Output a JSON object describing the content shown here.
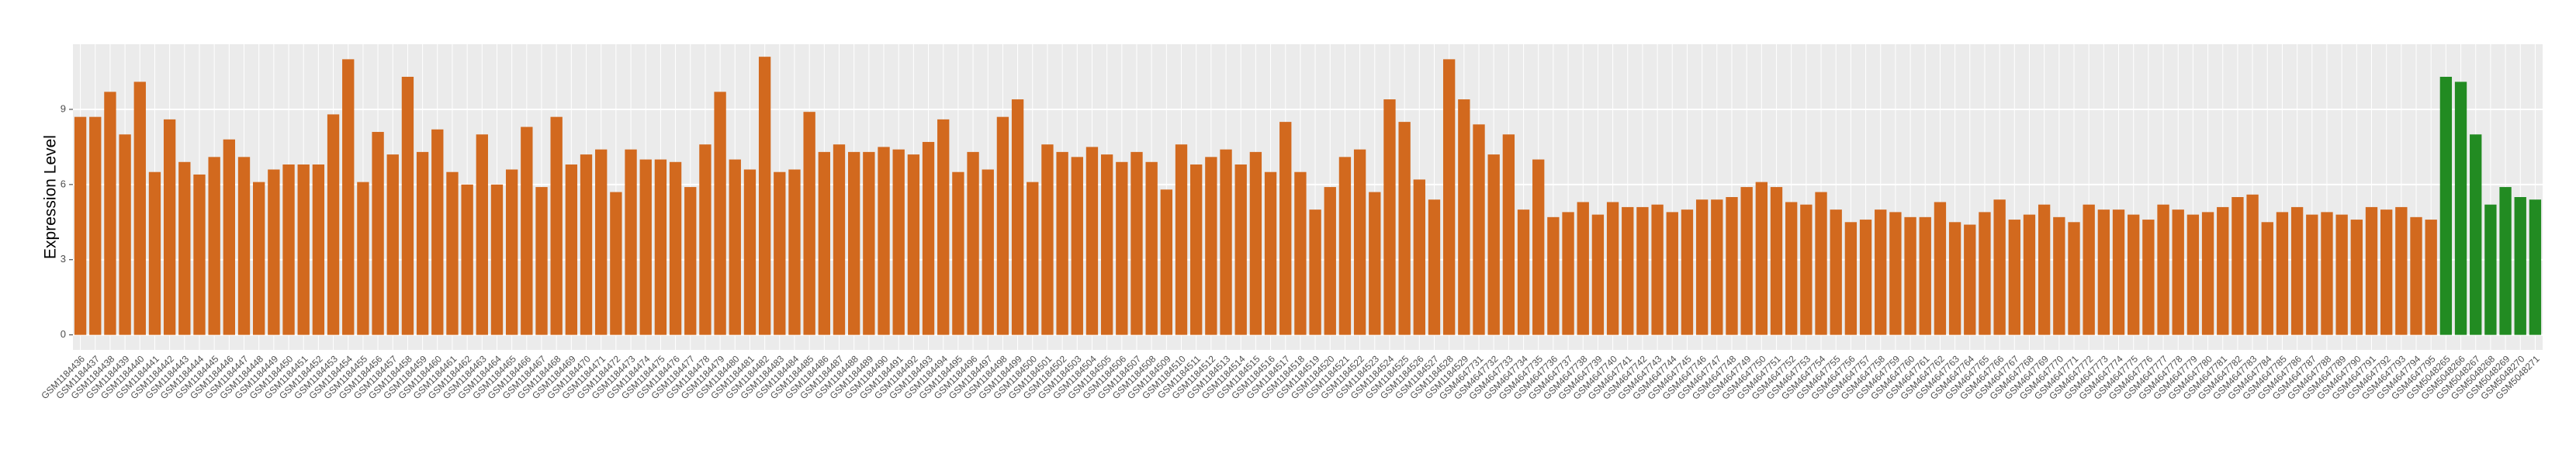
{
  "chart_data": {
    "type": "bar",
    "y_label": "Expression Level",
    "categories": [
      "GSM1184436",
      "GSM1184437",
      "GSM1184438",
      "GSM1184439",
      "GSM1184440",
      "GSM1184441",
      "GSM1184442",
      "GSM1184443",
      "GSM1184444",
      "GSM1184445",
      "GSM1184446",
      "GSM1184447",
      "GSM1184448",
      "GSM1184449",
      "GSM1184450",
      "GSM1184451",
      "GSM1184452",
      "GSM1184453",
      "GSM1184454",
      "GSM1184455",
      "GSM1184456",
      "GSM1184457",
      "GSM1184458",
      "GSM1184459",
      "GSM1184460",
      "GSM1184461",
      "GSM1184462",
      "GSM1184463",
      "GSM1184464",
      "GSM1184465",
      "GSM1184466",
      "GSM1184467",
      "GSM1184468",
      "GSM1184469",
      "GSM1184470",
      "GSM1184471",
      "GSM1184472",
      "GSM1184473",
      "GSM1184474",
      "GSM1184475",
      "GSM1184476",
      "GSM1184477",
      "GSM1184478",
      "GSM1184479",
      "GSM1184480",
      "GSM1184481",
      "GSM1184482",
      "GSM1184483",
      "GSM1184484",
      "GSM1184485",
      "GSM1184486",
      "GSM1184487",
      "GSM1184488",
      "GSM1184489",
      "GSM1184490",
      "GSM1184491",
      "GSM1184492",
      "GSM1184493",
      "GSM1184494",
      "GSM1184495",
      "GSM1184496",
      "GSM1184497",
      "GSM1184498",
      "GSM1184499",
      "GSM1184500",
      "GSM1184501",
      "GSM1184502",
      "GSM1184503",
      "GSM1184504",
      "GSM1184505",
      "GSM1184506",
      "GSM1184507",
      "GSM1184508",
      "GSM1184509",
      "GSM1184510",
      "GSM1184511",
      "GSM1184512",
      "GSM1184513",
      "GSM1184514",
      "GSM1184515",
      "GSM1184516",
      "GSM1184517",
      "GSM1184518",
      "GSM1184519",
      "GSM1184520",
      "GSM1184521",
      "GSM1184522",
      "GSM1184523",
      "GSM1184524",
      "GSM1184525",
      "GSM1184526",
      "GSM1184527",
      "GSM1184528",
      "GSM1184529",
      "GSM4647731",
      "GSM4647732",
      "GSM4647733",
      "GSM4647734",
      "GSM4647735",
      "GSM4647736",
      "GSM4647737",
      "GSM4647738",
      "GSM4647739",
      "GSM4647740",
      "GSM4647741",
      "GSM4647742",
      "GSM4647743",
      "GSM4647744",
      "GSM4647745",
      "GSM4647746",
      "GSM4647747",
      "GSM4647748",
      "GSM4647749",
      "GSM4647750",
      "GSM4647751",
      "GSM4647752",
      "GSM4647753",
      "GSM4647754",
      "GSM4647755",
      "GSM4647756",
      "GSM4647757",
      "GSM4647758",
      "GSM4647759",
      "GSM4647760",
      "GSM4647761",
      "GSM4647762",
      "GSM4647763",
      "GSM4647764",
      "GSM4647765",
      "GSM4647766",
      "GSM4647767",
      "GSM4647768",
      "GSM4647769",
      "GSM4647770",
      "GSM4647771",
      "GSM4647772",
      "GSM4647773",
      "GSM4647774",
      "GSM4647775",
      "GSM4647776",
      "GSM4647777",
      "GSM4647778",
      "GSM4647779",
      "GSM4647780",
      "GSM4647781",
      "GSM4647782",
      "GSM4647783",
      "GSM4647784",
      "GSM4647785",
      "GSM4647786",
      "GSM4647787",
      "GSM4647788",
      "GSM4647789",
      "GSM4647790",
      "GSM4647791",
      "GSM4647792",
      "GSM4647793",
      "GSM4647794",
      "GSM4647795",
      "GSM5048265",
      "GSM5048266",
      "GSM5048267",
      "GSM5048268",
      "GSM5048269",
      "GSM5048270",
      "GSM5048271"
    ],
    "values": [
      8.7,
      8.7,
      9.7,
      8.0,
      10.1,
      6.5,
      8.6,
      6.9,
      6.4,
      7.1,
      7.8,
      7.1,
      6.1,
      6.6,
      6.8,
      6.8,
      6.8,
      8.8,
      11.0,
      6.1,
      8.1,
      7.2,
      10.3,
      7.3,
      8.2,
      6.5,
      6.0,
      8.0,
      6.0,
      6.6,
      8.3,
      5.9,
      8.7,
      6.8,
      7.2,
      7.4,
      5.7,
      7.4,
      7.0,
      7.0,
      6.9,
      5.9,
      7.6,
      9.7,
      7.0,
      6.6,
      11.1,
      6.5,
      6.6,
      8.9,
      7.3,
      7.6,
      7.3,
      7.3,
      7.5,
      7.4,
      7.2,
      7.7,
      8.6,
      6.5,
      7.3,
      6.6,
      8.7,
      9.4,
      6.1,
      7.6,
      7.3,
      7.1,
      7.5,
      7.2,
      6.9,
      7.3,
      6.9,
      5.8,
      7.6,
      6.8,
      7.1,
      7.4,
      6.8,
      7.3,
      6.5,
      8.5,
      6.5,
      5.0,
      5.9,
      7.1,
      7.4,
      5.7,
      9.4,
      8.5,
      6.2,
      5.4,
      11.0,
      9.4,
      8.4,
      7.2,
      8.0,
      5.0,
      7.0,
      4.7,
      4.9,
      5.3,
      4.8,
      5.3,
      5.1,
      5.1,
      5.2,
      4.9,
      5.0,
      5.4,
      5.4,
      5.5,
      5.9,
      6.1,
      5.9,
      5.3,
      5.2,
      5.7,
      5.0,
      4.5,
      4.6,
      5.0,
      4.9,
      4.7,
      4.7,
      5.3,
      4.5,
      4.4,
      4.9,
      5.4,
      4.6,
      4.8,
      5.2,
      4.7,
      4.5,
      5.2,
      5.0,
      5.0,
      4.8,
      4.6,
      5.2,
      5.0,
      4.8,
      4.9,
      5.1,
      5.5,
      5.6,
      4.5,
      4.9,
      5.1,
      4.8,
      4.9,
      4.8,
      4.6,
      5.1,
      5.0,
      5.1,
      4.7,
      4.6,
      10.3,
      10.1,
      8.0,
      5.2,
      5.9,
      5.5,
      5.4
    ],
    "colors": [
      "#d2691e",
      "#d2691e",
      "#d2691e",
      "#d2691e",
      "#d2691e",
      "#d2691e",
      "#d2691e",
      "#d2691e",
      "#d2691e",
      "#d2691e",
      "#d2691e",
      "#d2691e",
      "#d2691e",
      "#d2691e",
      "#d2691e",
      "#d2691e",
      "#d2691e",
      "#d2691e",
      "#d2691e",
      "#d2691e",
      "#d2691e",
      "#d2691e",
      "#d2691e",
      "#d2691e",
      "#d2691e",
      "#d2691e",
      "#d2691e",
      "#d2691e",
      "#d2691e",
      "#d2691e",
      "#d2691e",
      "#d2691e",
      "#d2691e",
      "#d2691e",
      "#d2691e",
      "#d2691e",
      "#d2691e",
      "#d2691e",
      "#d2691e",
      "#d2691e",
      "#d2691e",
      "#d2691e",
      "#d2691e",
      "#d2691e",
      "#d2691e",
      "#d2691e",
      "#d2691e",
      "#d2691e",
      "#d2691e",
      "#d2691e",
      "#d2691e",
      "#d2691e",
      "#d2691e",
      "#d2691e",
      "#d2691e",
      "#d2691e",
      "#d2691e",
      "#d2691e",
      "#d2691e",
      "#d2691e",
      "#d2691e",
      "#d2691e",
      "#d2691e",
      "#d2691e",
      "#d2691e",
      "#d2691e",
      "#d2691e",
      "#d2691e",
      "#d2691e",
      "#d2691e",
      "#d2691e",
      "#d2691e",
      "#d2691e",
      "#d2691e",
      "#d2691e",
      "#d2691e",
      "#d2691e",
      "#d2691e",
      "#d2691e",
      "#d2691e",
      "#d2691e",
      "#d2691e",
      "#d2691e",
      "#d2691e",
      "#d2691e",
      "#d2691e",
      "#d2691e",
      "#d2691e",
      "#d2691e",
      "#d2691e",
      "#d2691e",
      "#d2691e",
      "#d2691e",
      "#d2691e",
      "#d2691e",
      "#d2691e",
      "#d2691e",
      "#d2691e",
      "#d2691e",
      "#d2691e",
      "#d2691e",
      "#d2691e",
      "#d2691e",
      "#d2691e",
      "#d2691e",
      "#d2691e",
      "#d2691e",
      "#d2691e",
      "#d2691e",
      "#d2691e",
      "#d2691e",
      "#d2691e",
      "#d2691e",
      "#d2691e",
      "#d2691e",
      "#d2691e",
      "#d2691e",
      "#d2691e",
      "#d2691e",
      "#d2691e",
      "#d2691e",
      "#d2691e",
      "#d2691e",
      "#d2691e",
      "#d2691e",
      "#d2691e",
      "#d2691e",
      "#d2691e",
      "#d2691e",
      "#d2691e",
      "#d2691e",
      "#d2691e",
      "#d2691e",
      "#d2691e",
      "#d2691e",
      "#d2691e",
      "#d2691e",
      "#d2691e",
      "#d2691e",
      "#d2691e",
      "#d2691e",
      "#d2691e",
      "#d2691e",
      "#d2691e",
      "#d2691e",
      "#d2691e",
      "#d2691e",
      "#d2691e",
      "#d2691e",
      "#d2691e",
      "#d2691e",
      "#d2691e",
      "#d2691e",
      "#d2691e",
      "#d2691e",
      "#d2691e",
      "#d2691e",
      "#d2691e",
      "#d2691e",
      "#228b22",
      "#228b22",
      "#228b22",
      "#228b22",
      "#228b22",
      "#228b22",
      "#228b22"
    ],
    "ylim": [
      -0.6,
      11.6
    ],
    "yticks": [
      0,
      3,
      6,
      9
    ],
    "grid": true
  }
}
